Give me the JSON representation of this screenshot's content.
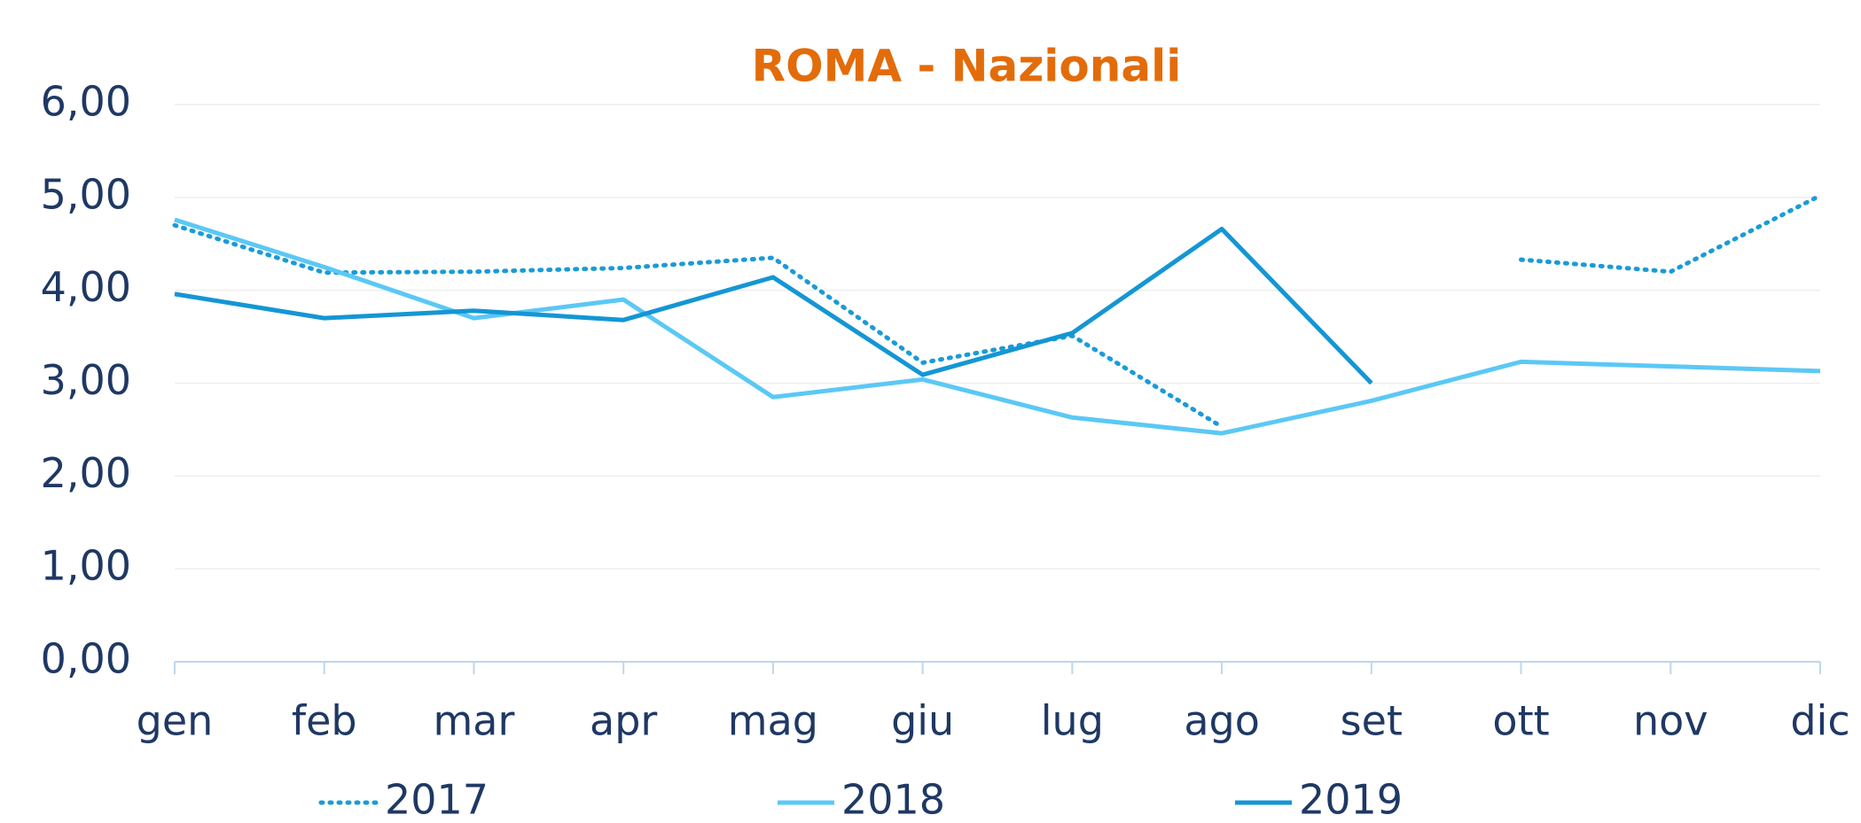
{
  "chart_data": {
    "type": "line",
    "title": "ROMA - Nazionali",
    "categories": [
      "gen",
      "feb",
      "mar",
      "apr",
      "mag",
      "giu",
      "lug",
      "ago",
      "set",
      "ott",
      "nov",
      "dic"
    ],
    "series": [
      {
        "name": "2017",
        "color": "#1a9bd7",
        "dash": "dotted",
        "values": [
          4.7,
          4.19,
          4.2,
          4.24,
          4.35,
          3.22,
          3.51,
          2.53,
          null,
          4.33,
          4.2,
          5.02
        ]
      },
      {
        "name": "2018",
        "color": "#5bc8f5",
        "dash": "solid",
        "values": [
          4.76,
          4.25,
          3.7,
          3.9,
          2.85,
          3.04,
          2.63,
          2.46,
          2.81,
          3.23,
          3.18,
          3.13
        ]
      },
      {
        "name": "2019",
        "color": "#1496d4",
        "dash": "solid",
        "values": [
          3.96,
          3.7,
          3.78,
          3.68,
          4.14,
          3.09,
          3.54,
          4.66,
          3.0,
          null,
          null,
          null
        ]
      }
    ],
    "ylim": [
      0,
      6
    ],
    "yticks": [
      {
        "value": 0,
        "label": "0,00"
      },
      {
        "value": 1,
        "label": "1,00"
      },
      {
        "value": 2,
        "label": "2,00"
      },
      {
        "value": 3,
        "label": "3,00"
      },
      {
        "value": 4,
        "label": "4,00"
      },
      {
        "value": 5,
        "label": "5,00"
      },
      {
        "value": 6,
        "label": "6,00"
      }
    ],
    "grid": true,
    "legend": "bottom"
  }
}
